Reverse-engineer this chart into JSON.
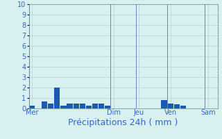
{
  "title": "Précipitations 24h ( mm )",
  "background_color": "#d8f0f0",
  "bar_color": "#1a5ab5",
  "ylim": [
    0,
    10
  ],
  "yticks": [
    0,
    1,
    2,
    3,
    4,
    5,
    6,
    7,
    8,
    9,
    10
  ],
  "grid_color": "#b8d4d4",
  "axis_label_color": "#3366cc",
  "day_labels": [
    "Mer",
    "Dim",
    "Jeu",
    "Ven",
    "Sam"
  ],
  "n_bars": 30,
  "bars": [
    0.3,
    0.0,
    0.7,
    0.5,
    2.0,
    0.3,
    0.5,
    0.5,
    0.5,
    0.3,
    0.5,
    0.5,
    0.3,
    0,
    0,
    0,
    0,
    0,
    0,
    0,
    0,
    0.8,
    0.5,
    0.4,
    0.3,
    0,
    0,
    0,
    0,
    0
  ],
  "xlabel_fontsize": 9,
  "tick_fontsize": 7,
  "spine_color": "#88aaaa",
  "separator_color": "#6688aa"
}
